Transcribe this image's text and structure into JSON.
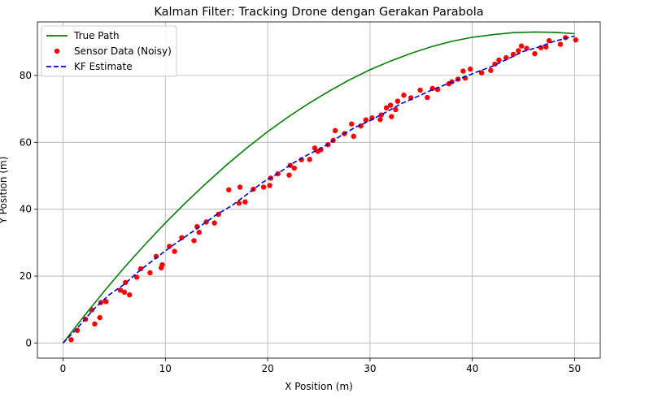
{
  "chart_data": {
    "type": "line",
    "title": "Kalman Filter: Tracking Drone dengan Gerakan Parabola",
    "xlabel": "X Position (m)",
    "ylabel": "Y Position (m)",
    "xlim": [
      -2.5,
      52.5
    ],
    "ylim": [
      -4.5,
      96
    ],
    "xticks": [
      0,
      10,
      20,
      30,
      40,
      50
    ],
    "yticks": [
      0,
      20,
      40,
      60,
      80
    ],
    "grid": true,
    "legend_position": "top-left",
    "series": [
      {
        "name": "True Path",
        "kind": "line",
        "color": "#008000",
        "style": "solid",
        "x": [
          0,
          2,
          4,
          6,
          8,
          10,
          12,
          14,
          16,
          18,
          20,
          22,
          24,
          26,
          28,
          30,
          32,
          34,
          36,
          38,
          40,
          42,
          44,
          46,
          48,
          50
        ],
        "y": [
          0,
          7.8,
          15.4,
          22.6,
          29.4,
          35.9,
          42.0,
          47.8,
          53.3,
          58.4,
          63.2,
          67.6,
          71.6,
          75.3,
          78.7,
          81.7,
          84.3,
          86.6,
          88.6,
          90.2,
          91.4,
          92.2,
          92.8,
          93.0,
          92.9,
          92.5
        ]
      },
      {
        "name": "Sensor Data (Noisy)",
        "kind": "scatter",
        "color": "#ff0000",
        "x": [
          0.8,
          1.4,
          2.2,
          2.8,
          3.1,
          3.6,
          3.7,
          4.2,
          5.6,
          6.0,
          6.1,
          6.5,
          7.2,
          7.6,
          8.5,
          9.1,
          9.6,
          9.7,
          10.4,
          10.9,
          11.6,
          12.8,
          13.1,
          13.3,
          14.0,
          14.8,
          15.2,
          16.2,
          17.2,
          17.3,
          17.8,
          18.6,
          19.6,
          20.2,
          20.3,
          21.0,
          22.1,
          22.2,
          22.6,
          23.3,
          24.1,
          24.6,
          24.9,
          25.2,
          25.9,
          26.4,
          26.6,
          27.5,
          28.2,
          28.4,
          29.1,
          29.6,
          30.2,
          31.0,
          31.1,
          31.6,
          32.0,
          32.1,
          32.5,
          32.7,
          33.3,
          34.0,
          34.9,
          35.6,
          36.1,
          36.6,
          37.7,
          38.0,
          38.6,
          39.1,
          39.3,
          39.8,
          40.9,
          41.8,
          42.2,
          42.6,
          43.3,
          44.0,
          44.5,
          44.8,
          45.3,
          46.1,
          46.7,
          47.2,
          47.5,
          48.6,
          49.1,
          50.1
        ],
        "y": [
          1.0,
          3.8,
          7.1,
          9.9,
          5.7,
          7.6,
          12.1,
          12.4,
          15.8,
          15.2,
          18.1,
          14.4,
          19.7,
          22.2,
          21.0,
          25.9,
          22.5,
          23.4,
          28.9,
          27.4,
          31.5,
          30.6,
          34.8,
          33.1,
          36.2,
          35.9,
          38.5,
          45.8,
          41.8,
          46.6,
          42.2,
          46.0,
          46.6,
          47.1,
          49.3,
          50.6,
          50.2,
          53.1,
          52.3,
          54.8,
          54.9,
          58.3,
          57.3,
          57.8,
          59.3,
          60.6,
          63.5,
          62.6,
          65.5,
          61.8,
          64.9,
          66.7,
          67.3,
          66.8,
          68.2,
          70.3,
          71.1,
          67.7,
          69.8,
          72.3,
          74.1,
          73.3,
          75.6,
          73.4,
          76.1,
          75.8,
          77.5,
          78.1,
          78.9,
          81.3,
          79.2,
          81.9,
          80.8,
          81.5,
          83.4,
          84.6,
          85.3,
          86.3,
          87.4,
          88.8,
          88.1,
          86.5,
          88.3,
          88.5,
          90.4,
          89.3,
          91.3,
          90.6
        ]
      },
      {
        "name": "KF Estimate",
        "kind": "line",
        "color": "#0000cd",
        "style": "dashed",
        "x": [
          0,
          1.5,
          3,
          4.5,
          6,
          7.5,
          9,
          10.5,
          12,
          13.5,
          15,
          16.5,
          18,
          19.5,
          21,
          22.5,
          24,
          25.5,
          27,
          28.5,
          30,
          31.5,
          33,
          34.5,
          36,
          37.5,
          39,
          40.5,
          42,
          43.5,
          45,
          46.5,
          48,
          50
        ],
        "y": [
          0,
          4.8,
          10.1,
          14.4,
          17.6,
          21.7,
          25.2,
          28.7,
          31.9,
          35.1,
          38.4,
          41.1,
          44.5,
          48.0,
          50.7,
          53.8,
          56.4,
          58.7,
          61.7,
          64.4,
          66.5,
          68.9,
          71.5,
          73.5,
          75.6,
          77.4,
          79.3,
          81.1,
          82.8,
          85.0,
          87.2,
          88.5,
          90.2,
          91.8
        ]
      }
    ]
  }
}
